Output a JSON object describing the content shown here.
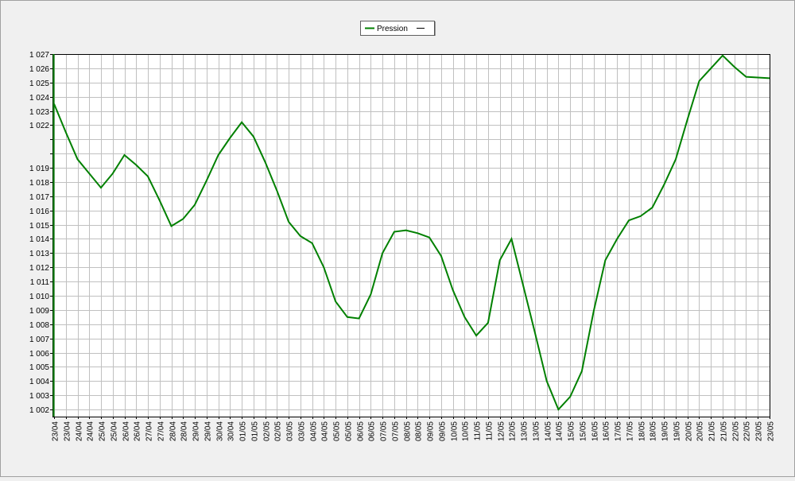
{
  "chart_data": {
    "type": "line",
    "categories": [
      "23/04",
      "23/04",
      "24/04",
      "24/04",
      "25/04",
      "25/04",
      "26/04",
      "26/04",
      "27/04",
      "27/04",
      "28/04",
      "28/04",
      "29/04",
      "29/04",
      "30/04",
      "30/04",
      "01/05",
      "01/05",
      "02/05",
      "02/05",
      "03/05",
      "03/05",
      "04/05",
      "04/05",
      "05/05",
      "05/05",
      "06/05",
      "06/05",
      "07/05",
      "07/05",
      "08/05",
      "08/05",
      "09/05",
      "09/05",
      "10/05",
      "10/05",
      "11/05",
      "11/05",
      "12/05",
      "12/05",
      "13/05",
      "13/05",
      "14/05",
      "14/05",
      "15/05",
      "15/05",
      "16/05",
      "16/05",
      "17/05",
      "17/05",
      "18/05",
      "18/05",
      "19/05",
      "19/05",
      "20/05",
      "20/05",
      "21/05",
      "21/05",
      "22/05",
      "22/05",
      "23/05",
      "23/05"
    ],
    "series": [
      {
        "name": "Pression",
        "color": "#008000",
        "values": [
          1023.5,
          1021.5,
          1019.6,
          1018.6,
          1017.6,
          1018.6,
          1019.9,
          1019.2,
          1018.4,
          1016.7,
          1014.9,
          1015.4,
          1016.4,
          1018.1,
          1019.9,
          1021.1,
          1022.2,
          1021.2,
          1019.4,
          1017.4,
          1015.2,
          1014.2,
          1013.7,
          1012.0,
          1009.6,
          1008.5,
          1008.4,
          1010.1,
          1013.0,
          1014.5,
          1014.6,
          1014.4,
          1014.1,
          1012.8,
          1010.4,
          1008.5,
          1007.2,
          1008.1,
          1012.5,
          1014.0,
          1010.7,
          1007.4,
          1004.0,
          1002.0,
          1002.9,
          1004.7,
          1008.9,
          1012.5,
          1014.0,
          1015.3,
          1015.6,
          1016.2,
          1017.8,
          1019.6,
          1022.4,
          1025.1,
          1026.0,
          1026.9,
          1026.1,
          1025.4,
          1025.35,
          1025.3
        ]
      }
    ],
    "ylim": [
      1001.5,
      1027
    ],
    "yticks": [
      {
        "value": 1002,
        "label": "1 002"
      },
      {
        "value": 1003,
        "label": "1 003"
      },
      {
        "value": 1004,
        "label": "1 004"
      },
      {
        "value": 1005,
        "label": "1 005"
      },
      {
        "value": 1006,
        "label": "1 006"
      },
      {
        "value": 1007,
        "label": "1 007"
      },
      {
        "value": 1008,
        "label": "1 008"
      },
      {
        "value": 1009,
        "label": "1 009"
      },
      {
        "value": 1010,
        "label": "1 010"
      },
      {
        "value": 1011,
        "label": "1 011"
      },
      {
        "value": 1012,
        "label": "1 012"
      },
      {
        "value": 1013,
        "label": "1 013"
      },
      {
        "value": 1014,
        "label": "1 014"
      },
      {
        "value": 1015,
        "label": "1 015"
      },
      {
        "value": 1016,
        "label": "1 016"
      },
      {
        "value": 1017,
        "label": "1 017"
      },
      {
        "value": 1018,
        "label": "1 018"
      },
      {
        "value": 1019,
        "label": "1 019"
      },
      {
        "value": 1020,
        "label": null
      },
      {
        "value": 1021,
        "label": null
      },
      {
        "value": 1022,
        "label": "1 022"
      },
      {
        "value": 1023,
        "label": "1 023"
      },
      {
        "value": 1024,
        "label": "1 024"
      },
      {
        "value": 1025,
        "label": "1 025"
      },
      {
        "value": 1026,
        "label": "1 026"
      },
      {
        "value": 1027,
        "label": "1 027"
      }
    ],
    "grid": true,
    "legend": "top"
  }
}
